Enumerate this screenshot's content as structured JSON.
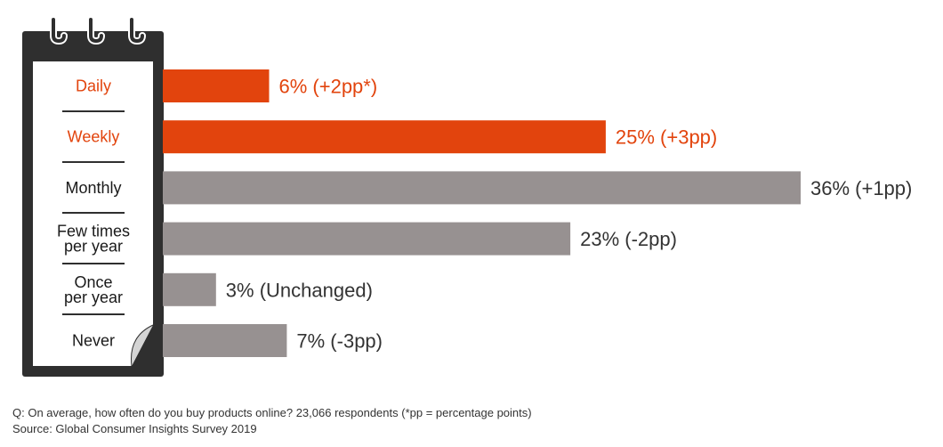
{
  "chart_data": {
    "type": "bar",
    "orientation": "horizontal",
    "title": "",
    "xlabel": "",
    "ylabel": "",
    "xlim": [
      0,
      36
    ],
    "grid": false,
    "legend": "none",
    "categories": [
      {
        "lines": [
          "Daily"
        ],
        "value": 6,
        "label": "6% (+2pp*)",
        "highlight": true
      },
      {
        "lines": [
          "Weekly"
        ],
        "value": 25,
        "label": "25% (+3pp)",
        "highlight": true
      },
      {
        "lines": [
          "Monthly"
        ],
        "value": 36,
        "label": "36% (+1pp)",
        "highlight": false
      },
      {
        "lines": [
          "Few times",
          "per year"
        ],
        "value": 23,
        "label": "23% (-2pp)",
        "highlight": false
      },
      {
        "lines": [
          "Once",
          "per year"
        ],
        "value": 3,
        "label": "3% (Unchanged)",
        "highlight": false
      },
      {
        "lines": [
          "Never"
        ],
        "value": 7,
        "label": "7% (-3pp)",
        "highlight": false
      }
    ]
  },
  "colors": {
    "highlight": "#e2440d",
    "default_bar": "#979191",
    "frame": "#2f2f2f",
    "category_text": "#1a1a1a",
    "value_text": "#333333"
  },
  "icons": {
    "calendar": "calendar-frame-icon"
  },
  "footnote": {
    "question": "Q: On average, how often do you buy products online?  23,066 respondents (*pp = percentage points)",
    "source": "Source: Global Consumer Insights Survey 2019"
  }
}
